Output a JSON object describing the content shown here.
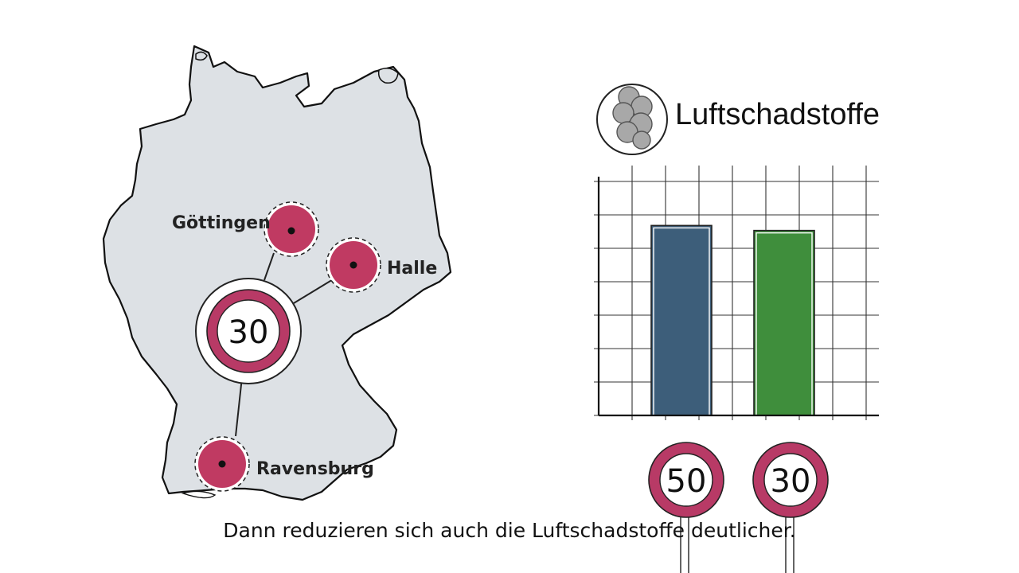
{
  "map": {
    "cities": [
      {
        "name": "Göttingen"
      },
      {
        "name": "Halle"
      },
      {
        "name": "Ravensburg"
      }
    ],
    "hub_sign": "30"
  },
  "pollutants": {
    "title": "Luftschadstoffe",
    "icon": "smoke-cloud-icon"
  },
  "chart_data": {
    "type": "bar",
    "categories": [
      "50",
      "30"
    ],
    "values": [
      7.6,
      7.4
    ],
    "ylim": [
      0,
      10
    ],
    "grid": true,
    "colors": [
      "#3d5e7a",
      "#3f8e3c"
    ]
  },
  "speed_signs": [
    "50",
    "30"
  ],
  "subtitle": "Dann reduzieren sich auch die Luftschadstoffe deutlicher.",
  "colors": {
    "sign_ring": "#b83a66",
    "map_fill": "#dde1e5",
    "city_dot": "#c03a62"
  }
}
